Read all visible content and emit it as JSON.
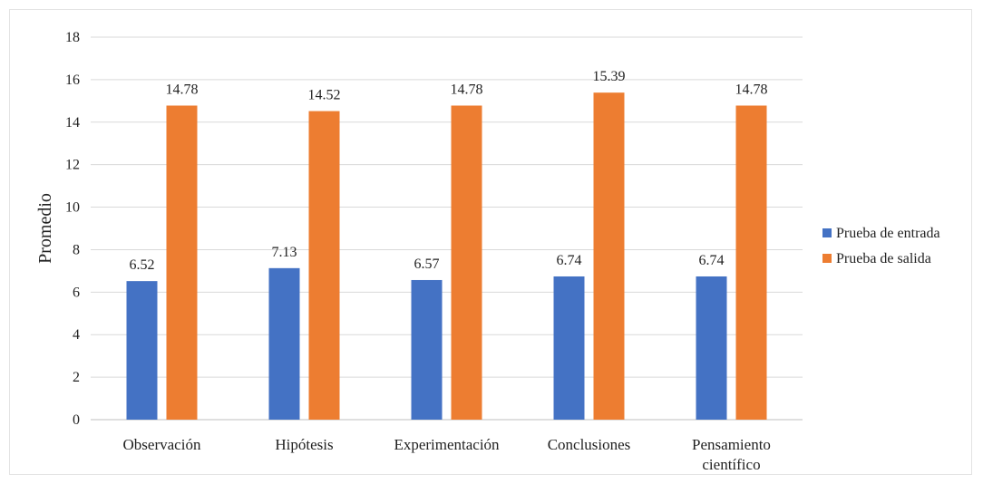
{
  "chart_data": {
    "type": "bar",
    "title": "",
    "xlabel": "",
    "ylabel": "Promedio",
    "ylim": [
      0,
      18
    ],
    "yticks": [
      0,
      2,
      4,
      6,
      8,
      10,
      12,
      14,
      16,
      18
    ],
    "grid": true,
    "legend_position": "right",
    "categories": [
      [
        "Observación"
      ],
      [
        "Hipótesis"
      ],
      [
        "Experimentación"
      ],
      [
        "Conclusiones"
      ],
      [
        "Pensamiento",
        "científico"
      ]
    ],
    "series": [
      {
        "name": "Prueba de entrada",
        "color": "#4472C4",
        "values": [
          6.52,
          7.13,
          6.57,
          6.74,
          6.74
        ]
      },
      {
        "name": "Prueba de salida",
        "color": "#ED7D31",
        "values": [
          14.78,
          14.52,
          14.78,
          15.39,
          14.78
        ]
      }
    ]
  }
}
